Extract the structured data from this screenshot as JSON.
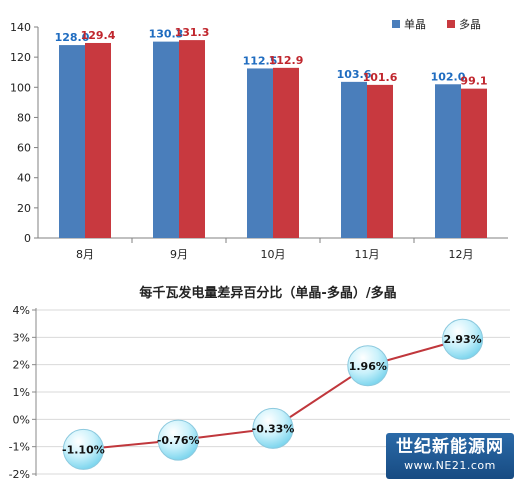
{
  "chart_data": [
    {
      "type": "bar",
      "categories": [
        "8月",
        "9月",
        "10月",
        "11月",
        "12月"
      ],
      "series": [
        {
          "name": "单晶",
          "values": [
            128.0,
            130.3,
            112.5,
            103.6,
            102.0
          ],
          "labels": [
            "128.0",
            "130.3",
            "112.5",
            "103.6",
            "102.0"
          ],
          "color": "#4a7ebb",
          "label_color": "#1f6cc0"
        },
        {
          "name": "多晶",
          "values": [
            129.4,
            131.3,
            112.9,
            101.6,
            99.1
          ],
          "labels": [
            "129.4",
            "131.3",
            "112.9",
            "101.6",
            "99.1"
          ],
          "color": "#c8393f",
          "label_color": "#c0262d"
        }
      ],
      "ylim": [
        0,
        140
      ],
      "yticks": [
        "0",
        "20",
        "40",
        "60",
        "80",
        "100",
        "120",
        "140"
      ],
      "legend_position": "top-right",
      "grid": false
    },
    {
      "type": "line",
      "title": "每千瓦发电量差异百分比（单晶-多晶）/多晶",
      "x": [
        1,
        2,
        3,
        4,
        5
      ],
      "values": [
        -1.1,
        -0.76,
        -0.33,
        1.96,
        2.93
      ],
      "labels": [
        "-1.10%",
        "-0.76%",
        "-0.33%",
        "1.96%",
        "2.93%"
      ],
      "ylim": [
        -2,
        4
      ],
      "yticks": [
        "-2%",
        "-1%",
        "0%",
        "1%",
        "2%",
        "3%",
        "4%"
      ],
      "line_color": "#c0373c",
      "grid": true
    }
  ],
  "watermark": {
    "cn": "世纪新能源网",
    "en": "www.NE21.com"
  }
}
